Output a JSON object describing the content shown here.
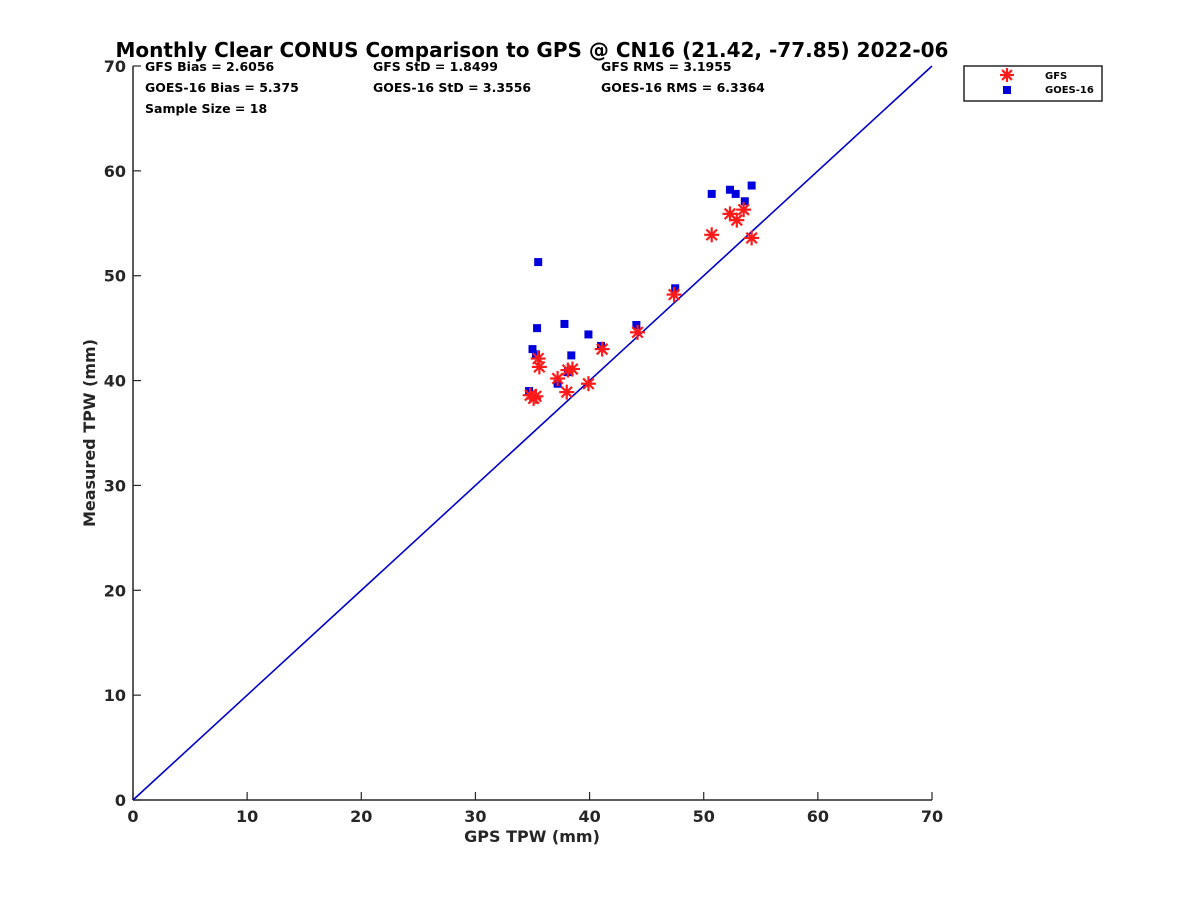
{
  "chart_data": {
    "type": "scatter",
    "title": "Monthly Clear CONUS Comparison to GPS @ CN16 (21.42, -77.85) 2022-06",
    "xlabel": "GPS TPW (mm)",
    "ylabel": "Measured TPW (mm)",
    "xlim": [
      0,
      70
    ],
    "ylim": [
      0,
      70
    ],
    "xticks": [
      "0",
      "10",
      "20",
      "30",
      "40",
      "50",
      "60",
      "70"
    ],
    "yticks": [
      "0",
      "10",
      "20",
      "30",
      "40",
      "50",
      "60",
      "70"
    ],
    "grid": false,
    "legend_position": "outside-top-right",
    "reference_line": {
      "x": [
        0,
        70
      ],
      "y": [
        0,
        70
      ],
      "color": "#0000cc"
    },
    "stats": {
      "gfs_bias": "GFS Bias = 2.6056",
      "gfs_std": "GFS StD = 1.8499",
      "gfs_rms": "GFS RMS = 3.1955",
      "goes_bias": "GOES-16 Bias = 5.375",
      "goes_std": "GOES-16 StD = 3.3556",
      "goes_rms": "GOES-16 RMS = 6.3364",
      "sample_size": "Sample Size = 18"
    },
    "series": [
      {
        "name": "GFS",
        "marker": "asterisk",
        "color": "#ff1a1a",
        "x": [
          34.8,
          35.1,
          35.3,
          35.5,
          35.6,
          37.2,
          38.1,
          38.5,
          38.0,
          39.9,
          41.1,
          44.2,
          47.4,
          50.7,
          52.3,
          52.9,
          53.5,
          54.2
        ],
        "y": [
          38.6,
          38.3,
          38.5,
          42.1,
          41.3,
          40.2,
          41.0,
          41.1,
          38.9,
          39.7,
          43.0,
          44.6,
          48.2,
          53.9,
          55.9,
          55.3,
          56.3,
          53.6
        ]
      },
      {
        "name": "GOES-16",
        "marker": "square",
        "color": "#0000dd",
        "x": [
          34.7,
          35.0,
          35.3,
          35.4,
          35.5,
          37.2,
          37.8,
          38.1,
          38.4,
          39.9,
          41.0,
          44.1,
          47.5,
          50.7,
          52.3,
          52.8,
          53.6,
          54.2
        ],
        "y": [
          39.0,
          43.0,
          42.5,
          45.0,
          51.3,
          39.7,
          45.4,
          40.8,
          42.4,
          44.4,
          43.3,
          45.3,
          48.8,
          57.8,
          58.2,
          57.8,
          57.1,
          58.6
        ]
      }
    ]
  }
}
